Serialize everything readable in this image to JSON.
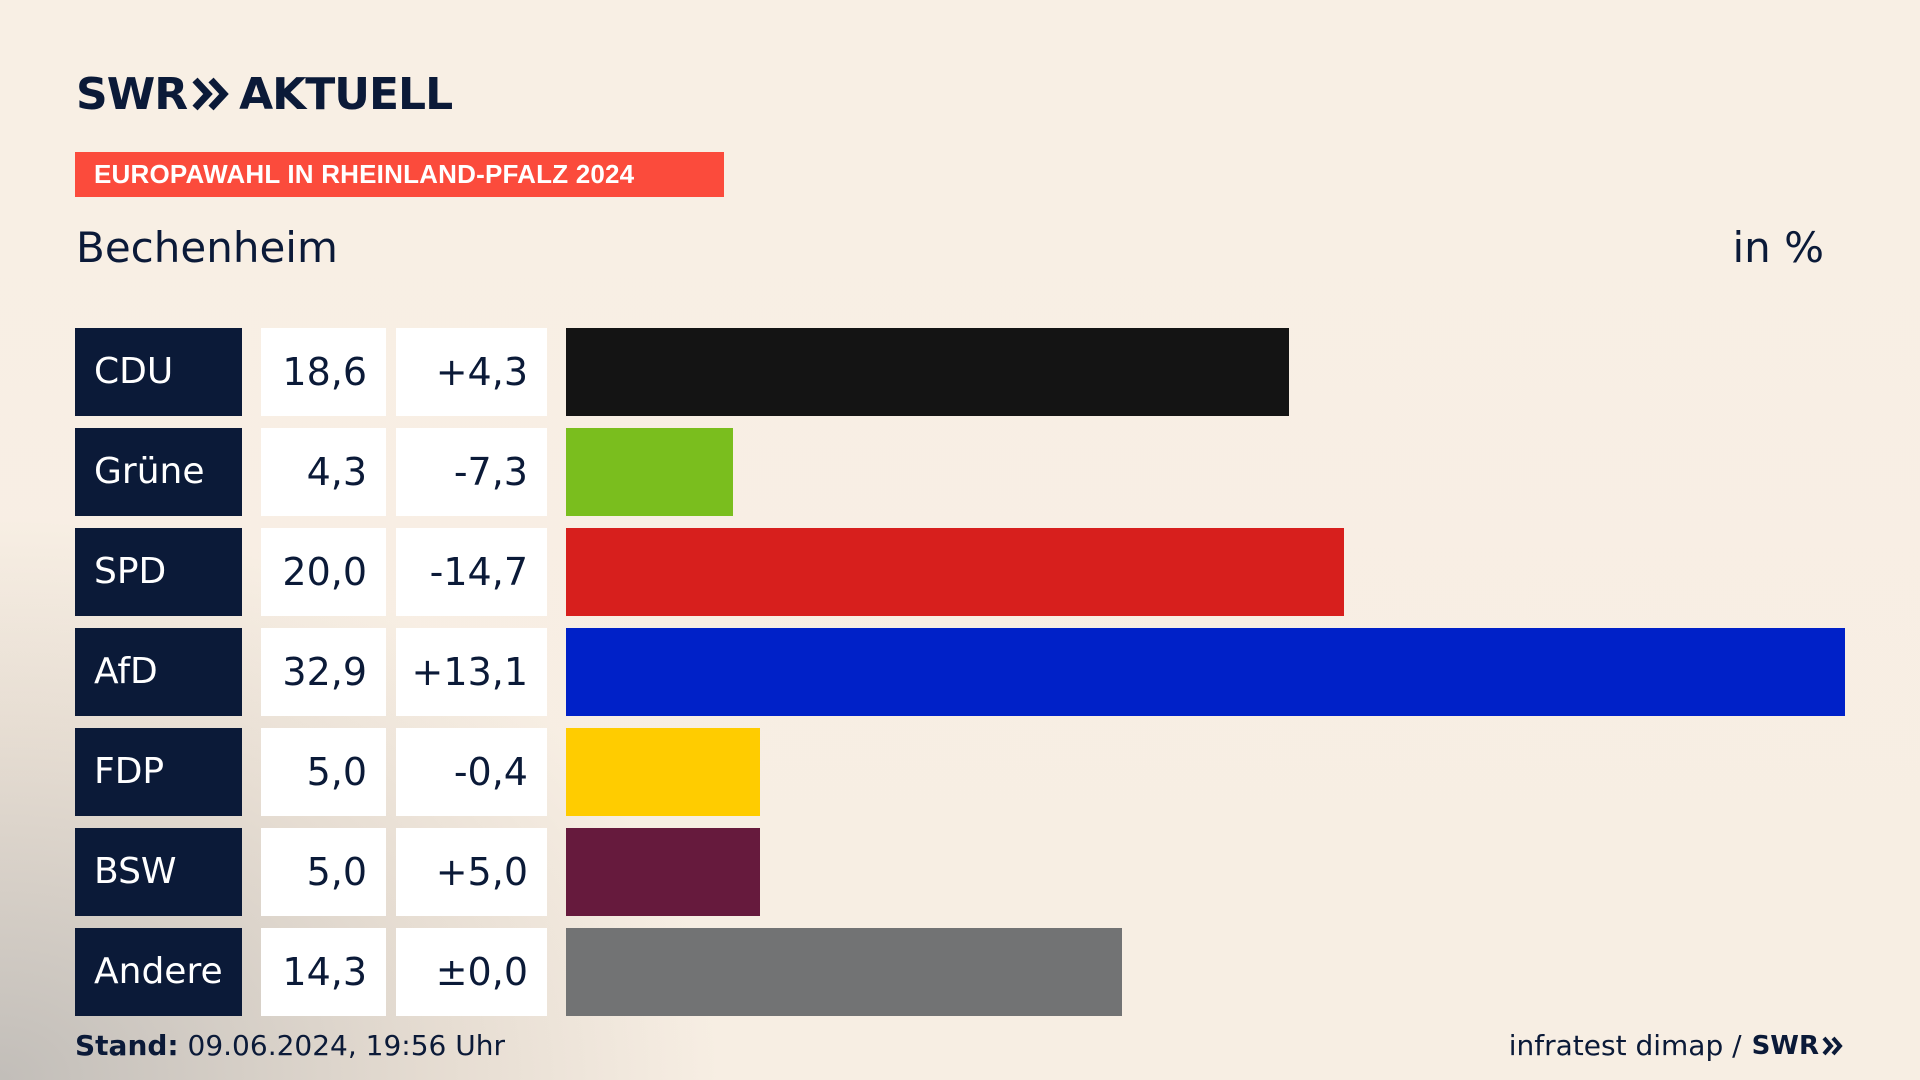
{
  "brand": {
    "logo_left": "SWR",
    "logo_right": "AKTUELL",
    "logo_icon": "double-chevron-icon"
  },
  "header": {
    "badge": "EUROPAWAHL IN RHEINLAND-PFALZ 2024",
    "badge_color": "#fb4b3c",
    "location": "Bechenheim",
    "unit": "in %"
  },
  "footer": {
    "stand_label": "Stand:",
    "stand_value": "09.06.2024, 19:56 Uhr",
    "source": "infratest dimap /",
    "source_brand": "SWR"
  },
  "chart_data": {
    "type": "bar",
    "orientation": "horizontal",
    "categories": [
      "CDU",
      "Grüne",
      "SPD",
      "AfD",
      "FDP",
      "BSW",
      "Andere"
    ],
    "values": [
      18.6,
      4.3,
      20.0,
      32.9,
      5.0,
      5.0,
      14.3
    ],
    "value_labels": [
      "18,6",
      "4,3",
      "20,0",
      "32,9",
      "5,0",
      "5,0",
      "14,3"
    ],
    "diff_labels": [
      "+4,3",
      "-7,3",
      "-14,7",
      "+13,1",
      "-0,4",
      "+5,0",
      "±0,0"
    ],
    "colors": [
      "#141414",
      "#7abe1e",
      "#d71f1d",
      "#0021c8",
      "#ffcc00",
      "#661a3d",
      "#727374"
    ],
    "xlim": [
      0,
      32.9
    ],
    "title": "",
    "xlabel": "",
    "ylabel": "",
    "grid": false,
    "legend": "none"
  }
}
